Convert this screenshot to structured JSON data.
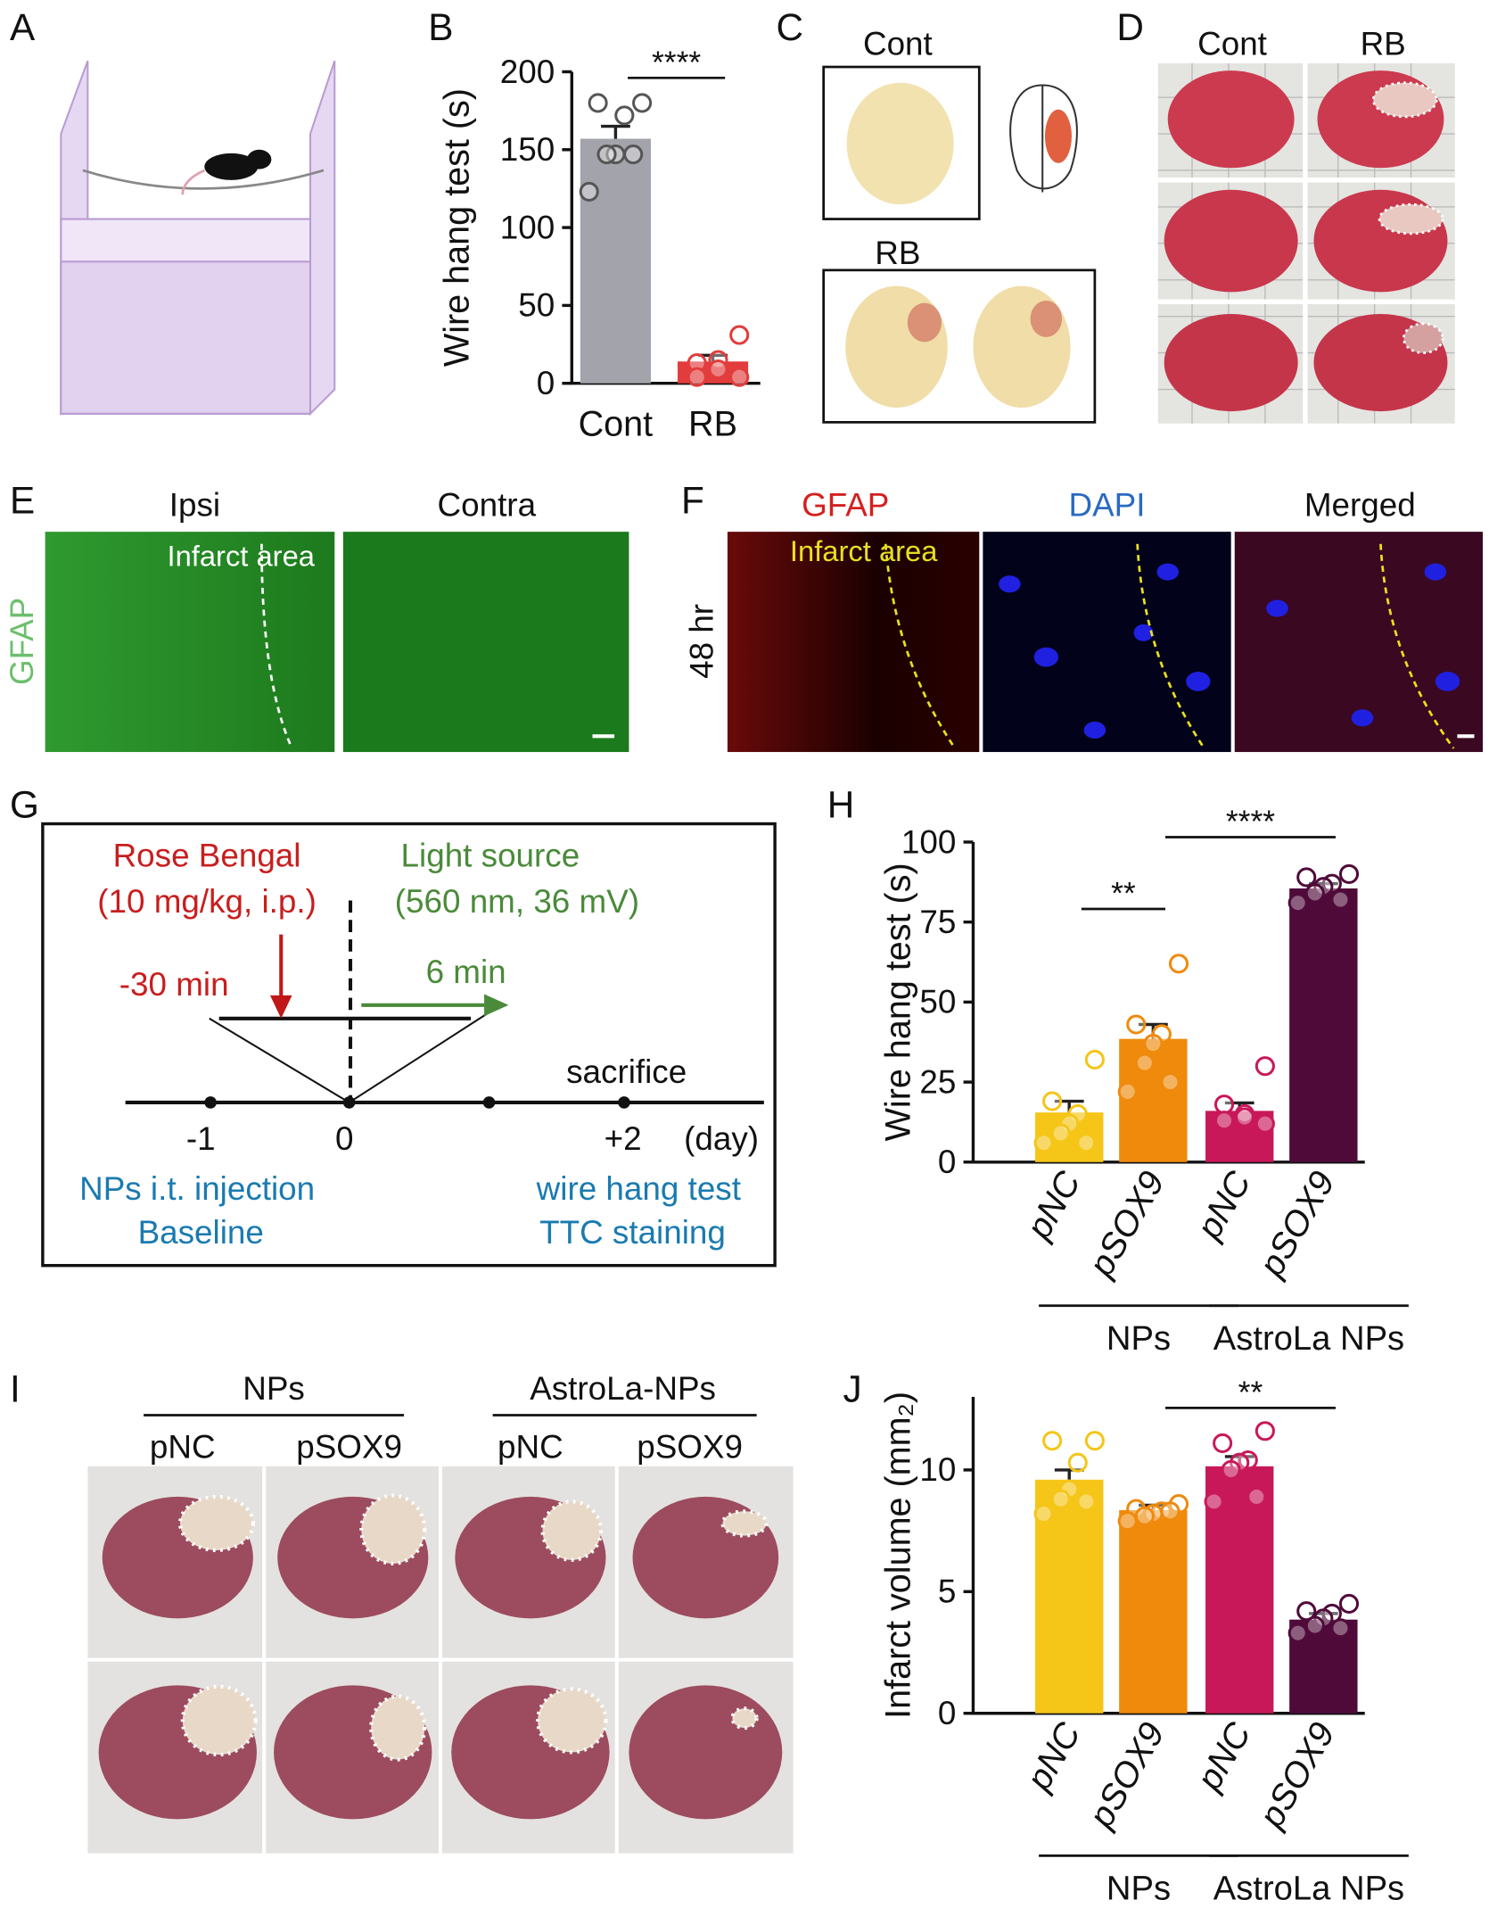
{
  "panel_labels": [
    "A",
    "B",
    "C",
    "D",
    "E",
    "F",
    "G",
    "H",
    "I",
    "J"
  ],
  "panel_c": {
    "top_label": "Cont",
    "bottom_label": "RB"
  },
  "panel_d": {
    "columns": [
      "Cont",
      "RB"
    ]
  },
  "panel_e": {
    "columns": [
      "Ipsi",
      "Contra"
    ],
    "region": "Infarct area",
    "stain": "GFAP"
  },
  "panel_f": {
    "columns": [
      "GFAP",
      "DAPI",
      "Merged"
    ],
    "region": "Infarct area",
    "time": "48 hr"
  },
  "panel_g": {
    "drug": "Rose Bengal",
    "drug_dose": "(10 mg/kg, i.p.)",
    "light": "Light source",
    "light_params": "(560 nm, 36 mV)",
    "pre_time": "-30 min",
    "light_time": "6 min",
    "endpoint": "sacrifice",
    "days": [
      "-1",
      "0",
      "+2"
    ],
    "day_unit": "(day)",
    "left_steps": [
      "NPs i.t. injection",
      "Baseline"
    ],
    "right_steps": [
      "wire hang test",
      "TTC staining"
    ]
  },
  "panel_i": {
    "groups": [
      "NPs",
      "AstroLa-NPs"
    ],
    "columns": [
      "pNC",
      "pSOX9",
      "pNC",
      "pSOX9"
    ]
  },
  "chart_data": [
    {
      "type": "bar",
      "ylabel": "Wire hang test (s)",
      "categories": [
        "Cont",
        "RB"
      ],
      "values": [
        157,
        14
      ],
      "errors": [
        8,
        4
      ],
      "colors": [
        "#a3a3ab",
        "#e23c3c"
      ],
      "points": [
        [
          180,
          180,
          172,
          147,
          147,
          147,
          123
        ],
        [
          31,
          13,
          15,
          9,
          4,
          4
        ]
      ],
      "ylim": [
        0,
        200
      ],
      "yticks": [
        0,
        50,
        100,
        150,
        200
      ],
      "annotations": [
        {
          "text": "****",
          "between": [
            0,
            1
          ]
        }
      ]
    },
    {
      "type": "bar",
      "ylabel": "Wire hang test (s)",
      "categories": [
        "pNC",
        "pSOX9",
        "pNC",
        "pSOX9"
      ],
      "values": [
        15.5,
        38.5,
        16,
        85.5
      ],
      "errors": [
        3.5,
        4.5,
        2.5,
        1.5
      ],
      "colors": [
        "#f5c518",
        "#ef8a0c",
        "#c8185a",
        "#4f0a3a"
      ],
      "points": [
        [
          32,
          19,
          15,
          12,
          9,
          6,
          6
        ],
        [
          62,
          43,
          40,
          37,
          31,
          25,
          22
        ],
        [
          30,
          18,
          15,
          14,
          13,
          12
        ],
        [
          90,
          89,
          87,
          86,
          84,
          82,
          81
        ]
      ],
      "ylim": [
        0,
        100
      ],
      "yticks": [
        0,
        25,
        50,
        75,
        100
      ],
      "annotations": [
        {
          "text": "**",
          "between": [
            0,
            1
          ]
        },
        {
          "text": "****",
          "between": [
            1,
            3
          ]
        }
      ],
      "groups": [
        {
          "label": "NPs",
          "categories": [
            0,
            1
          ]
        },
        {
          "label": "AstroLa NPs",
          "categories": [
            2,
            3
          ]
        }
      ]
    },
    {
      "type": "bar",
      "ylabel": "Infarct volume (mm₂)",
      "categories": [
        "pNC",
        "pSOX9",
        "pNC",
        "pSOX9"
      ],
      "values": [
        9.6,
        8.35,
        10.15,
        3.85
      ],
      "errors": [
        0.4,
        0.2,
        0.4,
        0.25
      ],
      "colors": [
        "#f5c518",
        "#ef8a0c",
        "#c8185a",
        "#4f0a3a"
      ],
      "points": [
        [
          11.2,
          11.2,
          10.3,
          9.2,
          8.8,
          8.7,
          8.2
        ],
        [
          8.6,
          8.4,
          8.3,
          8.2,
          8.1,
          8.3,
          7.9
        ],
        [
          11.6,
          11.1,
          10.4,
          10.3,
          10.0,
          8.9,
          8.7
        ],
        [
          4.5,
          4.2,
          4.1,
          3.9,
          3.6,
          3.5,
          3.3
        ]
      ],
      "ylim": [
        0,
        13
      ],
      "yticks": [
        0,
        5,
        10
      ],
      "annotations": [
        {
          "text": "**",
          "between": [
            1,
            3
          ]
        }
      ],
      "groups": [
        {
          "label": "NPs",
          "categories": [
            0,
            1
          ]
        },
        {
          "label": "AstroLa NPs",
          "categories": [
            2,
            3
          ]
        }
      ]
    }
  ]
}
